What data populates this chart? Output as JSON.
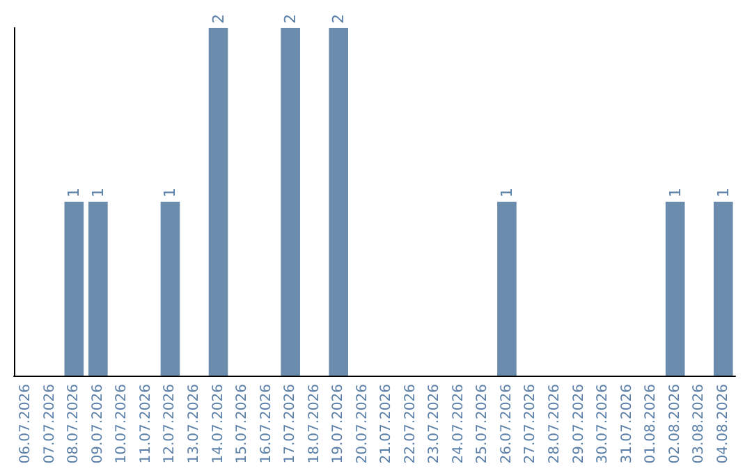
{
  "chart_data": {
    "type": "bar",
    "categories": [
      "06.07.2026",
      "07.07.2026",
      "08.07.2026",
      "09.07.2026",
      "10.07.2026",
      "11.07.2026",
      "12.07.2026",
      "13.07.2026",
      "14.07.2026",
      "15.07.2026",
      "16.07.2026",
      "17.07.2026",
      "18.07.2026",
      "19.07.2026",
      "20.07.2026",
      "21.07.2026",
      "22.07.2026",
      "23.07.2026",
      "24.07.2026",
      "25.07.2026",
      "26.07.2026",
      "27.07.2026",
      "28.07.2026",
      "29.07.2026",
      "30.07.2026",
      "31.07.2026",
      "01.08.2026",
      "02.08.2026",
      "03.08.2026",
      "04.08.2026"
    ],
    "values": [
      0,
      0,
      1,
      1,
      0,
      0,
      1,
      0,
      2,
      0,
      0,
      2,
      0,
      2,
      0,
      0,
      0,
      0,
      0,
      0,
      1,
      0,
      0,
      0,
      0,
      0,
      0,
      1,
      0,
      1
    ],
    "value_labels": [
      null,
      null,
      "1",
      "1",
      null,
      null,
      "1",
      null,
      "2",
      null,
      null,
      "2",
      null,
      "2",
      null,
      null,
      null,
      null,
      null,
      null,
      "1",
      null,
      null,
      null,
      null,
      null,
      null,
      "1",
      null,
      "1"
    ],
    "color": "#6b8cad",
    "ylim": [
      0,
      2
    ],
    "tick_labels": "x",
    "grid": false
  }
}
